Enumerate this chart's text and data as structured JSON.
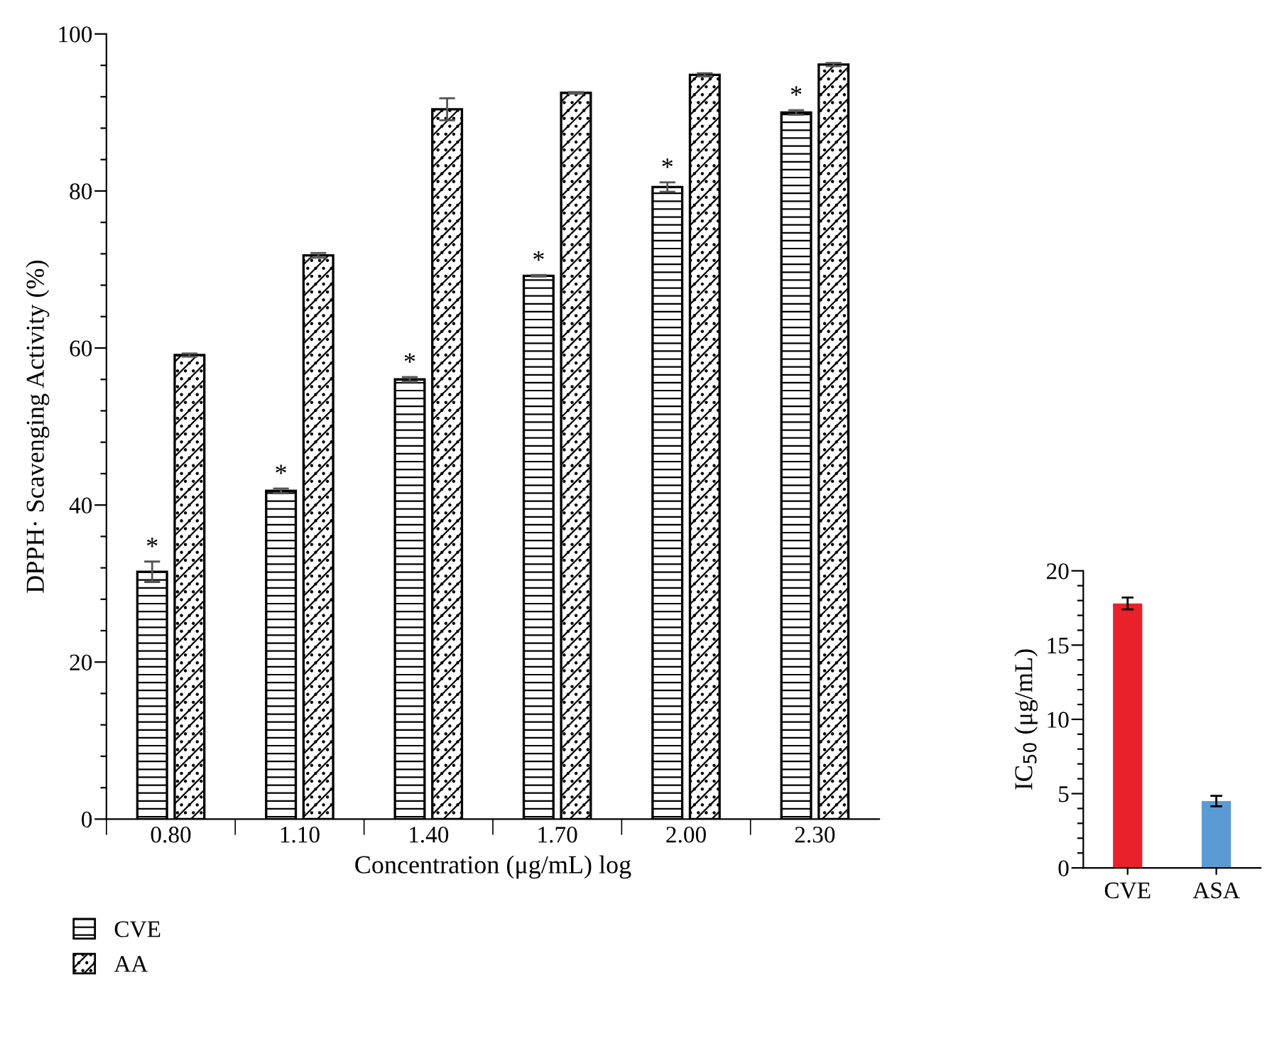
{
  "chart_data": [
    {
      "type": "bar",
      "xlabel": "Concentration (μg/mL) log",
      "ylabel": "DPPH· Scavenging Activity (%)",
      "categories": [
        "0.80",
        "1.10",
        "1.40",
        "1.70",
        "2.00",
        "2.30"
      ],
      "series": [
        {
          "name": "CVE",
          "color": "#000000",
          "values": [
            31.5,
            41.8,
            56,
            69.2,
            80.5,
            90
          ],
          "errors": [
            1.3,
            0.3,
            0.3,
            0.1,
            0.6,
            0.3
          ]
        },
        {
          "name": "AA",
          "color": "#000000",
          "values": [
            59.1,
            71.8,
            90.4,
            92.5,
            94.8,
            96.1
          ],
          "errors": [
            0.2,
            0.3,
            1.4,
            0.1,
            0.2,
            0.2
          ]
        }
      ],
      "ylim": [
        0,
        100
      ],
      "yticks": [
        0,
        {
          "value": 4,
          "label": null
        },
        {
          "value": 8,
          "label": null
        },
        {
          "value": 12,
          "label": null
        },
        {
          "value": 16,
          "label": null
        },
        20,
        {
          "value": 24,
          "label": null
        },
        {
          "value": 28,
          "label": null
        },
        {
          "value": 32,
          "label": null
        },
        {
          "value": 36,
          "label": null
        },
        40,
        {
          "value": 44,
          "label": null
        },
        {
          "value": 48,
          "label": null
        },
        {
          "value": 52,
          "label": null
        },
        {
          "value": 56,
          "label": null
        },
        60,
        {
          "value": 64,
          "label": null
        },
        {
          "value": 68,
          "label": null
        },
        {
          "value": 72,
          "label": null
        },
        {
          "value": 76,
          "label": null
        },
        80,
        {
          "value": 84,
          "label": null
        },
        {
          "value": 88,
          "label": null
        },
        {
          "value": 92,
          "label": null
        },
        {
          "value": 96,
          "label": null
        },
        100
      ],
      "annotations": [
        {
          "text": "*",
          "x": "0.80",
          "y": 33
        },
        {
          "text": "*",
          "x": "1.10",
          "y": 42.3
        },
        {
          "text": "*",
          "x": "1.40",
          "y": 56.5
        },
        {
          "text": "*",
          "x": "1.70",
          "y": 69.5
        },
        {
          "text": "*",
          "x": "2.00",
          "y": 81.3
        },
        {
          "text": "*",
          "x": "2.30",
          "y": 90.5
        }
      ],
      "legend": "bottom left",
      "grid": false
    },
    {
      "type": "bar",
      "ylabel": "IC$_{50}$ (μg/mL)",
      "categories": [
        "CVE",
        "ASA"
      ],
      "colors": [
        "#e8212a",
        "#5b9bd5"
      ],
      "values": [
        17.8,
        4.5
      ],
      "errors": [
        0.4,
        0.35
      ],
      "ylim": [
        0,
        20
      ],
      "yticks": [
        0,
        {
          "value": 1,
          "label": null
        },
        {
          "value": 2,
          "label": null
        },
        {
          "value": 3,
          "label": null
        },
        {
          "value": 4,
          "label": null
        },
        5,
        {
          "value": 6,
          "label": null
        },
        {
          "value": 7,
          "label": null
        },
        {
          "value": 8,
          "label": null
        },
        {
          "value": 9,
          "label": null
        },
        10,
        {
          "value": 11,
          "label": null
        },
        {
          "value": 12,
          "label": null
        },
        {
          "value": 13,
          "label": null
        },
        {
          "value": 14,
          "label": null
        },
        15,
        {
          "value": 16,
          "label": null
        },
        {
          "value": 17,
          "label": null
        },
        {
          "value": 18,
          "label": null
        },
        {
          "value": 19,
          "label": null
        },
        20
      ],
      "grid": false
    }
  ]
}
